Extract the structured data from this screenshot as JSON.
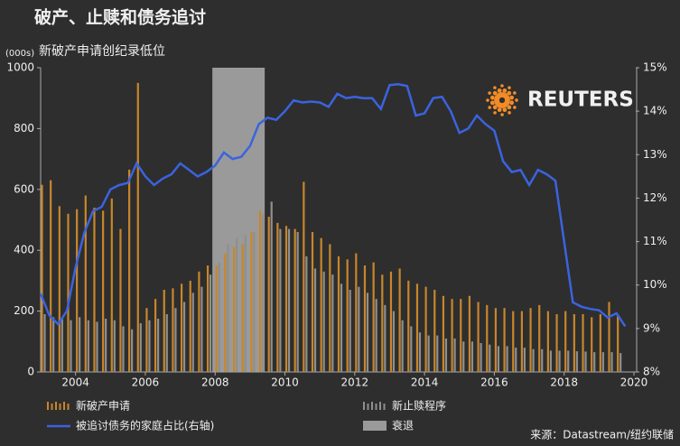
{
  "chart_data": {
    "type": "bar-line",
    "title": "破产、止赎和债务追讨",
    "subtitle": "新破产申请创纪录低位",
    "y_unit": "(000s)",
    "logo": "REUTERS",
    "source": "来源：Datastream/纽约联储",
    "xlim": [
      2003,
      2020
    ],
    "xticks": [
      2004,
      2006,
      2008,
      2010,
      2012,
      2014,
      2016,
      2018,
      2020
    ],
    "ylim": [
      0,
      1000
    ],
    "yticks": [
      0,
      200,
      400,
      600,
      800,
      1000
    ],
    "y2lim": [
      8,
      15
    ],
    "y2ticks": [
      {
        "value": 8,
        "label": "8%"
      },
      {
        "value": 9,
        "label": "9%"
      },
      {
        "value": 10,
        "label": "10%"
      },
      {
        "value": 11,
        "label": "11%"
      },
      {
        "value": 12,
        "label": "12%"
      },
      {
        "value": 13,
        "label": "13%"
      },
      {
        "value": 14,
        "label": "14%"
      },
      {
        "value": 15,
        "label": "15%"
      }
    ],
    "recession": {
      "name": "衰退",
      "color": "#9a9a9a",
      "x": [
        2007.92,
        2009.42
      ]
    },
    "series": [
      {
        "name": "新破产申请",
        "type": "bar",
        "color": "#c8862a",
        "x": [
          2003,
          2003.25,
          2003.5,
          2003.75,
          2004,
          2004.25,
          2004.5,
          2004.75,
          2005,
          2005.25,
          2005.5,
          2005.75,
          2006,
          2006.25,
          2006.5,
          2006.75,
          2007,
          2007.25,
          2007.5,
          2007.75,
          2008,
          2008.25,
          2008.5,
          2008.75,
          2009,
          2009.25,
          2009.5,
          2009.75,
          2010,
          2010.25,
          2010.5,
          2010.75,
          2011,
          2011.25,
          2011.5,
          2011.75,
          2012,
          2012.25,
          2012.5,
          2012.75,
          2013,
          2013.25,
          2013.5,
          2013.75,
          2014,
          2014.25,
          2014.5,
          2014.75,
          2015,
          2015.25,
          2015.5,
          2015.75,
          2016,
          2016.25,
          2016.5,
          2016.75,
          2017,
          2017.25,
          2017.5,
          2017.75,
          2018,
          2018.25,
          2018.5,
          2018.75,
          2019,
          2019.25,
          2019.5
        ],
        "values": [
          615,
          630,
          545,
          520,
          535,
          580,
          540,
          530,
          570,
          470,
          665,
          950,
          210,
          240,
          270,
          275,
          290,
          300,
          330,
          350,
          350,
          390,
          410,
          420,
          460,
          530,
          510,
          490,
          480,
          470,
          625,
          460,
          440,
          420,
          380,
          370,
          390,
          350,
          360,
          320,
          330,
          340,
          300,
          290,
          280,
          270,
          250,
          240,
          240,
          250,
          230,
          220,
          210,
          210,
          200,
          200,
          210,
          220,
          200,
          190,
          200,
          190,
          190,
          180,
          190,
          230,
          185
        ]
      },
      {
        "name": "新止赎程序",
        "type": "bar",
        "color": "#8f8f8f",
        "x": [
          2003,
          2003.25,
          2003.5,
          2003.75,
          2004,
          2004.25,
          2004.5,
          2004.75,
          2005,
          2005.25,
          2005.5,
          2005.75,
          2006,
          2006.25,
          2006.5,
          2006.75,
          2007,
          2007.25,
          2007.5,
          2007.75,
          2008,
          2008.25,
          2008.5,
          2008.75,
          2009,
          2009.25,
          2009.5,
          2009.75,
          2010,
          2010.25,
          2010.5,
          2010.75,
          2011,
          2011.25,
          2011.5,
          2011.75,
          2012,
          2012.25,
          2012.5,
          2012.75,
          2013,
          2013.25,
          2013.5,
          2013.75,
          2014,
          2014.25,
          2014.5,
          2014.75,
          2015,
          2015.25,
          2015.5,
          2015.75,
          2016,
          2016.25,
          2016.5,
          2016.75,
          2017,
          2017.25,
          2017.5,
          2017.75,
          2018,
          2018.25,
          2018.5,
          2018.75,
          2019,
          2019.25,
          2019.5
        ],
        "values": [
          190,
          180,
          175,
          170,
          180,
          170,
          165,
          175,
          170,
          150,
          140,
          160,
          170,
          175,
          190,
          210,
          230,
          260,
          280,
          320,
          360,
          420,
          440,
          450,
          460,
          520,
          560,
          470,
          470,
          460,
          380,
          340,
          330,
          320,
          290,
          270,
          280,
          260,
          240,
          220,
          200,
          170,
          150,
          130,
          120,
          120,
          110,
          110,
          100,
          100,
          95,
          90,
          85,
          85,
          80,
          80,
          75,
          75,
          70,
          70,
          70,
          68,
          67,
          65,
          65,
          65,
          62
        ]
      },
      {
        "name": "被追讨债务的家庭占比(右轴)",
        "type": "line",
        "axis": "y2",
        "color": "#3b63e0",
        "x": [
          2003,
          2003.25,
          2003.5,
          2003.75,
          2004,
          2004.25,
          2004.5,
          2004.75,
          2005,
          2005.25,
          2005.5,
          2005.75,
          2006,
          2006.25,
          2006.5,
          2006.75,
          2007,
          2007.25,
          2007.5,
          2007.75,
          2008,
          2008.25,
          2008.5,
          2008.75,
          2009,
          2009.25,
          2009.5,
          2009.75,
          2010,
          2010.25,
          2010.5,
          2010.75,
          2011,
          2011.25,
          2011.5,
          2011.75,
          2012,
          2012.25,
          2012.5,
          2012.75,
          2013,
          2013.25,
          2013.5,
          2013.75,
          2014,
          2014.25,
          2014.5,
          2014.75,
          2015,
          2015.25,
          2015.5,
          2015.75,
          2016,
          2016.25,
          2016.5,
          2016.75,
          2017,
          2017.25,
          2017.5,
          2017.75,
          2018,
          2018.25,
          2018.5,
          2018.75,
          2019,
          2019.25,
          2019.5,
          2019.75
        ],
        "values": [
          9.8,
          9.3,
          9.1,
          9.4,
          10.4,
          11.2,
          11.7,
          11.8,
          12.2,
          12.3,
          12.35,
          12.8,
          12.5,
          12.3,
          12.45,
          12.55,
          12.8,
          12.65,
          12.5,
          12.6,
          12.75,
          13.05,
          12.9,
          12.95,
          13.2,
          13.7,
          13.85,
          13.8,
          14.0,
          14.25,
          14.2,
          14.22,
          14.2,
          14.1,
          14.4,
          14.3,
          14.33,
          14.3,
          14.3,
          14.05,
          14.6,
          14.62,
          14.58,
          13.9,
          13.95,
          14.3,
          14.33,
          14.0,
          13.5,
          13.6,
          13.9,
          13.7,
          13.55,
          12.85,
          12.6,
          12.65,
          12.3,
          12.65,
          12.55,
          12.4,
          11.0,
          9.6,
          9.5,
          9.45,
          9.42,
          9.25,
          9.35,
          9.05
        ]
      }
    ]
  }
}
